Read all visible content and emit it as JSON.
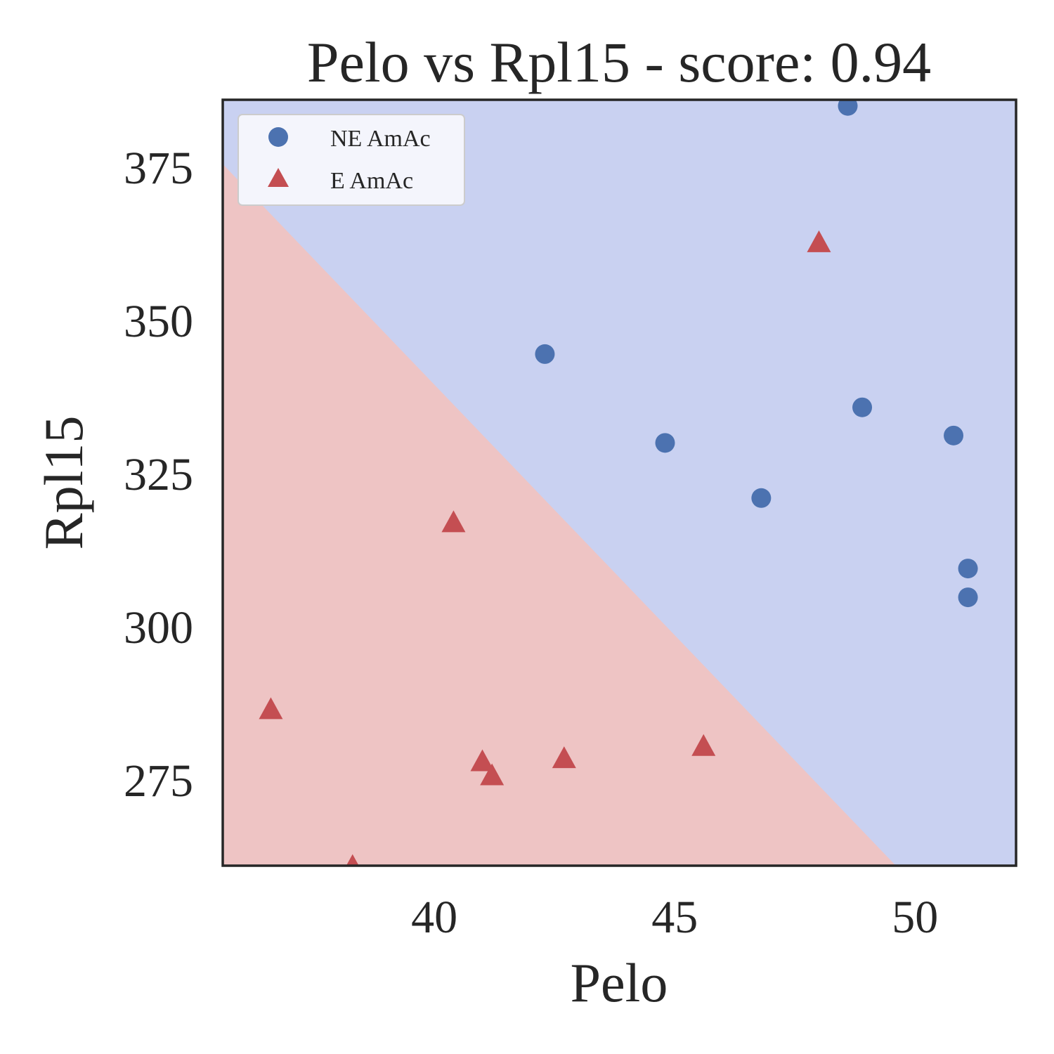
{
  "chart_data": {
    "type": "scatter",
    "title": "Pelo vs Rpl15 - score: 0.94",
    "xlabel": "Pelo",
    "ylabel": "Rpl15",
    "xlim": [
      35.6,
      52.1
    ],
    "ylim": [
      261,
      386
    ],
    "xticks": [
      40,
      45,
      50
    ],
    "yticks": [
      275,
      300,
      325,
      350,
      375
    ],
    "grid": false,
    "legend_position": "top-left",
    "decision_boundary": {
      "points": [
        [
          35.6,
          375.5
        ],
        [
          49.6,
          261
        ]
      ],
      "region_colors": {
        "upper": "#c9d1f1",
        "lower": "#eec4c4"
      }
    },
    "series": [
      {
        "name": "NE AmAc",
        "marker": "circle",
        "color": "#4c72b0",
        "points": [
          [
            48.6,
            385
          ],
          [
            42.3,
            344.5
          ],
          [
            48.9,
            335.8
          ],
          [
            44.8,
            330
          ],
          [
            50.8,
            331.2
          ],
          [
            46.8,
            321
          ],
          [
            51.1,
            309.5
          ],
          [
            51.1,
            304.8
          ]
        ]
      },
      {
        "name": "E AmAc",
        "marker": "triangle",
        "color": "#c44e52",
        "points": [
          [
            48,
            362.5
          ],
          [
            40.4,
            316.8
          ],
          [
            36.6,
            286.3
          ],
          [
            45.6,
            280.3
          ],
          [
            42.7,
            278.3
          ],
          [
            41,
            277.8
          ],
          [
            41.2,
            275.5
          ],
          [
            38.3,
            260.7
          ]
        ]
      }
    ]
  }
}
